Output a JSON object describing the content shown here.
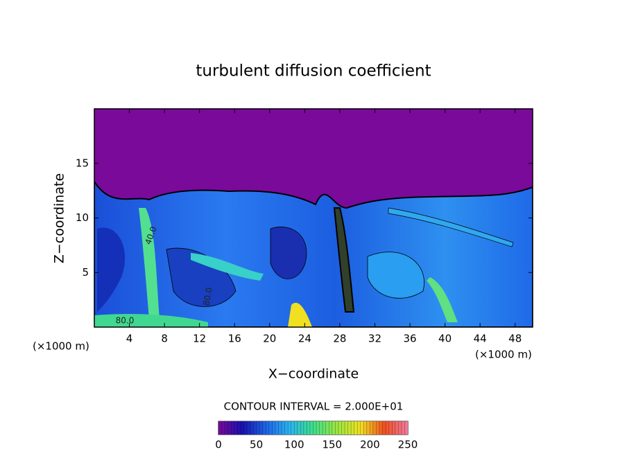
{
  "chart_data": {
    "type": "contour",
    "title": "turbulent diffusion coefficient",
    "xlabel": "X−coordinate",
    "ylabel": "Z−coordinate",
    "x_unit": "(×1000 m)",
    "x_unit_right": "(×1000 m)",
    "xlim": [
      0,
      50
    ],
    "xticks": [
      4,
      8,
      12,
      16,
      20,
      24,
      28,
      32,
      36,
      40,
      44,
      48
    ],
    "ylim": [
      0,
      20
    ],
    "yticks": [
      5,
      10,
      15
    ],
    "contour_note": "CONTOUR INTERVAL = 2.000E+01",
    "contour_labels": [
      "80.0",
      "40.0",
      "80.0"
    ],
    "clim": [
      0,
      250
    ],
    "cticks": [
      0,
      50,
      100,
      150,
      200,
      250
    ],
    "colormap": [
      "#7a0a9a",
      "#1a10b0",
      "#1e64e6",
      "#2ab4f0",
      "#3ce08c",
      "#9ae640",
      "#f0e020",
      "#f05020",
      "#f07aa0"
    ]
  }
}
